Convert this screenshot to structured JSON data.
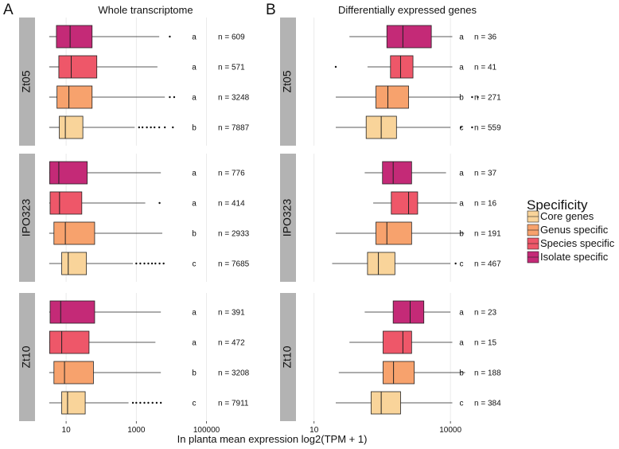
{
  "chart_data": {
    "type": "boxplot",
    "orientation": "horizontal",
    "xscale": "log10",
    "xlabel": "In planta mean expression log2(TPM + 1)",
    "legend": {
      "title": "Specificity",
      "placement": "right",
      "items": [
        {
          "label": "Core genes",
          "color": "#F9D49A"
        },
        {
          "label": "Genus specific",
          "color": "#F7A26D"
        },
        {
          "label": "Species specific",
          "color": "#EE5769"
        },
        {
          "label": "Isolate specific",
          "color": "#C42A77"
        }
      ]
    },
    "panels": [
      {
        "letter": "A",
        "title": "Whole transcriptome",
        "xlim": [
          1.3,
          6000000
        ],
        "xticks": [
          {
            "value": 10,
            "label": "10"
          },
          {
            "value": 1000,
            "label": "1000"
          },
          {
            "value": 100000,
            "label": "100000"
          }
        ],
        "groups": [
          {
            "name": "Zt05",
            "boxes": [
              {
                "category": "Isolate specific",
                "min": 3.3,
                "q1": 5.3,
                "median": 13,
                "q3": 55,
                "max": 4500,
                "outliers": [
                  9000
                ],
                "sig": "a",
                "n": "n = 609"
              },
              {
                "category": "Species specific",
                "min": 3.3,
                "q1": 6.2,
                "median": 14,
                "q3": 75,
                "max": 4000,
                "outliers": [],
                "sig": "a",
                "n": "n = 571"
              },
              {
                "category": "Genus specific",
                "min": 3.3,
                "q1": 5.5,
                "median": 12,
                "q3": 55,
                "max": 6500,
                "outliers": [
                  9000,
                  12000
                ],
                "sig": "a",
                "n": "n = 3248"
              },
              {
                "category": "Core genes",
                "min": 3.3,
                "q1": 6.4,
                "median": 9.5,
                "q3": 30,
                "max": 900,
                "outliers": [
                  1200,
                  1500,
                  2000,
                  2600,
                  3300,
                  4500,
                  6500,
                  11000
                ],
                "sig": "b",
                "n": "n = 7887"
              }
            ]
          },
          {
            "name": "IPO323",
            "boxes": [
              {
                "category": "Isolate specific",
                "min": 3.3,
                "q1": 3.4,
                "median": 6.2,
                "q3": 40,
                "max": 5000,
                "outliers": [],
                "sig": "a",
                "n": "n = 776"
              },
              {
                "category": "Species specific",
                "min": 3.3,
                "q1": 3.5,
                "median": 6.5,
                "q3": 28,
                "max": 1800,
                "outliers": [
                  4600
                ],
                "sig": "a",
                "n": "n = 414"
              },
              {
                "category": "Genus specific",
                "min": 3.3,
                "q1": 4.5,
                "median": 9.5,
                "q3": 65,
                "max": 5500,
                "outliers": [],
                "sig": "b",
                "n": "n = 2933"
              },
              {
                "category": "Core genes",
                "min": 3.3,
                "q1": 7.5,
                "median": 11.5,
                "q3": 38,
                "max": 800,
                "outliers": [
                  1000,
                  1300,
                  1700,
                  2200,
                  2800,
                  3500,
                  4600,
                  6000
                ],
                "sig": "c",
                "n": "n = 7685"
              }
            ]
          },
          {
            "name": "Zt10",
            "boxes": [
              {
                "category": "Isolate specific",
                "min": 3.3,
                "q1": 3.5,
                "median": 7,
                "q3": 65,
                "max": 5000,
                "outliers": [],
                "sig": "a",
                "n": "n = 391"
              },
              {
                "category": "Species specific",
                "min": 3.3,
                "q1": 3.4,
                "median": 7.5,
                "q3": 45,
                "max": 3500,
                "outliers": [],
                "sig": "a",
                "n": "n = 472"
              },
              {
                "category": "Genus specific",
                "min": 3.3,
                "q1": 4.5,
                "median": 9,
                "q3": 60,
                "max": 5000,
                "outliers": [],
                "sig": "b",
                "n": "n = 3208"
              },
              {
                "category": "Core genes",
                "min": 3.3,
                "q1": 7.5,
                "median": 11,
                "q3": 35,
                "max": 600,
                "outliers": [
                  800,
                  1000,
                  1300,
                  1700,
                  2200,
                  2900,
                  3800,
                  5000
                ],
                "sig": "c",
                "n": "n = 7911"
              }
            ]
          }
        ]
      },
      {
        "letter": "B",
        "title": "Differentially expressed genes",
        "xlim": [
          4,
          250000
        ],
        "xticks": [
          {
            "value": 10,
            "label": "10"
          },
          {
            "value": 10000,
            "label": "10000"
          }
        ],
        "groups": [
          {
            "name": "Zt05",
            "boxes": [
              {
                "category": "Isolate specific",
                "min": 60,
                "q1": 400,
                "median": 900,
                "q3": 3800,
                "max": 11000,
                "outliers": [],
                "sig": "a",
                "n": "n = 36"
              },
              {
                "category": "Species specific",
                "min": 150,
                "q1": 480,
                "median": 800,
                "q3": 1500,
                "max": 11000,
                "outliers": [
                  30
                ],
                "sig": "a",
                "n": "n = 41"
              },
              {
                "category": "Genus specific",
                "min": 30,
                "q1": 230,
                "median": 420,
                "q3": 1200,
                "max": 17000,
                "outliers": [
                  30000,
                  40000
                ],
                "sig": "b",
                "n": "n = 271"
              },
              {
                "category": "Core genes",
                "min": 30,
                "q1": 140,
                "median": 300,
                "q3": 650,
                "max": 10000,
                "outliers": [
                  17000,
                  30000
                ],
                "sig": "c",
                "n": "n = 559"
              }
            ]
          },
          {
            "name": "IPO323",
            "boxes": [
              {
                "category": "Isolate specific",
                "min": 130,
                "q1": 320,
                "median": 550,
                "q3": 1400,
                "max": 8000,
                "outliers": [],
                "sig": "a",
                "n": "n = 37"
              },
              {
                "category": "Species specific",
                "min": 200,
                "q1": 500,
                "median": 1200,
                "q3": 1900,
                "max": 14000,
                "outliers": [],
                "sig": "a",
                "n": "n = 16"
              },
              {
                "category": "Genus specific",
                "min": 30,
                "q1": 230,
                "median": 400,
                "q3": 1400,
                "max": 20000,
                "outliers": [],
                "sig": "b",
                "n": "n = 191"
              },
              {
                "category": "Core genes",
                "min": 25,
                "q1": 150,
                "median": 260,
                "q3": 600,
                "max": 10000,
                "outliers": [
                  13000
                ],
                "sig": "c",
                "n": "n = 467"
              }
            ]
          },
          {
            "name": "Zt10",
            "boxes": [
              {
                "category": "Isolate specific",
                "min": 130,
                "q1": 550,
                "median": 1300,
                "q3": 2600,
                "max": 10000,
                "outliers": [],
                "sig": "a",
                "n": "n = 23"
              },
              {
                "category": "Species specific",
                "min": 60,
                "q1": 330,
                "median": 900,
                "q3": 1400,
                "max": 11000,
                "outliers": [],
                "sig": "a",
                "n": "n = 15"
              },
              {
                "category": "Genus specific",
                "min": 35,
                "q1": 330,
                "median": 560,
                "q3": 1600,
                "max": 21000,
                "outliers": [],
                "sig": "b",
                "n": "n = 188"
              },
              {
                "category": "Core genes",
                "min": 30,
                "q1": 180,
                "median": 300,
                "q3": 800,
                "max": 11000,
                "outliers": [],
                "sig": "c",
                "n": "n = 384"
              }
            ]
          }
        ]
      }
    ]
  }
}
